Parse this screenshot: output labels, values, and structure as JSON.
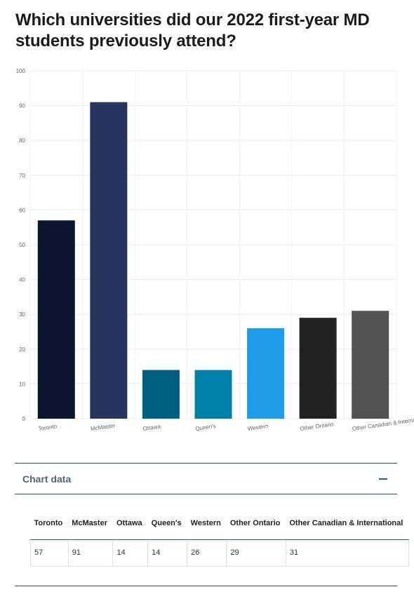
{
  "page": {
    "title": "Which universities did our 2022 first-year MD students previously attend?"
  },
  "chart_data": {
    "type": "bar",
    "categories": [
      "Toronto",
      "McMaster",
      "Ottawa",
      "Queen's",
      "Western",
      "Other Ontario",
      "Other Canadian & International"
    ],
    "values": [
      57,
      91,
      14,
      14,
      26,
      29,
      31
    ],
    "colors": [
      "#0c1530",
      "#27355e",
      "#005f80",
      "#007fab",
      "#1e9ce8",
      "#222222",
      "#515151"
    ],
    "ylim": [
      0,
      100
    ],
    "yticks": [
      "0",
      "10",
      "20",
      "30",
      "40",
      "50",
      "60",
      "70",
      "80",
      "90",
      "100"
    ],
    "grid": true,
    "title": "Which universities did our 2022 first-year MD students previously attend?",
    "xlabel": "",
    "ylabel": ""
  },
  "accordion": {
    "label": "Chart data",
    "icon": "minus-icon"
  },
  "table": {
    "headers": [
      "Toronto",
      "McMaster",
      "Ottawa",
      "Queen's",
      "Western",
      "Other Ontario",
      "Other Canadian & International"
    ],
    "rows": [
      [
        "57",
        "91",
        "14",
        "14",
        "26",
        "29",
        "31"
      ]
    ]
  }
}
